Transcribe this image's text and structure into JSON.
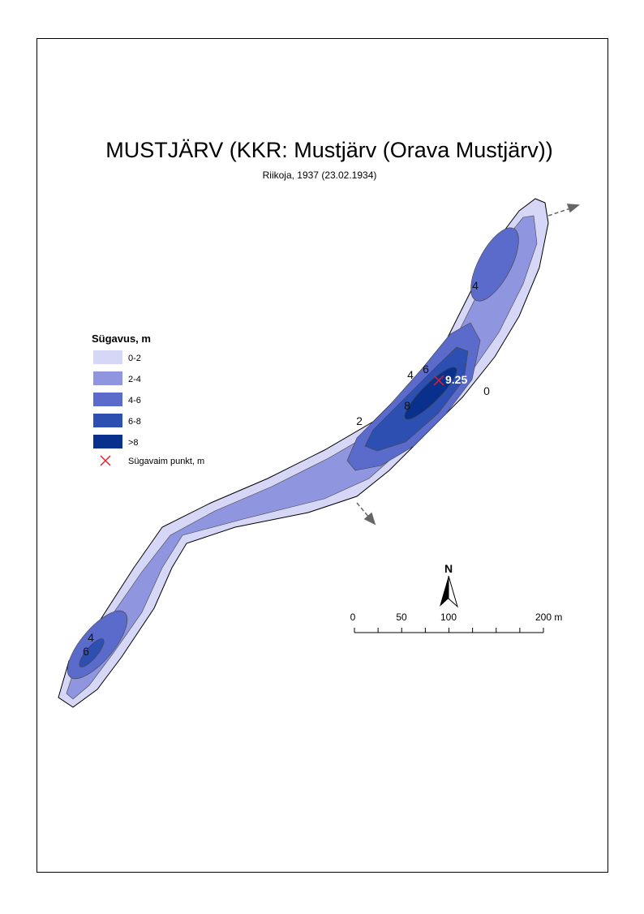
{
  "header": {
    "title": "MUSTJÄRV (KKR: Mustjärv (Orava Mustjärv))",
    "subtitle": "Riikoja, 1937 (23.02.1934)"
  },
  "legend": {
    "title": "Sügavus, m",
    "items": [
      {
        "label": "0-2",
        "color": "#d6d6f6"
      },
      {
        "label": "2-4",
        "color": "#8f96df"
      },
      {
        "label": "4-6",
        "color": "#5b6bcc"
      },
      {
        "label": "6-8",
        "color": "#2d4fb1"
      },
      {
        "label": ">8",
        "color": "#0a308d"
      }
    ],
    "deepest": "Sügavaim punkt, m"
  },
  "contour_labels": [
    "4",
    "4",
    "6",
    "8",
    "0",
    "2",
    "4",
    "6"
  ],
  "deepest_point": "9.25",
  "north": "N",
  "scale_bar": [
    "0",
    "50",
    "100",
    "200  m"
  ]
}
